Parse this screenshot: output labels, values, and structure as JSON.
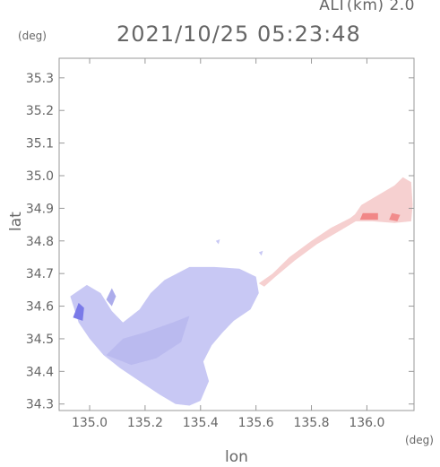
{
  "header": {
    "altitude": "ALT(km) 2.0",
    "timestamp": "2021/10/25 05:23:48",
    "y_unit": "(deg)",
    "x_unit": "(deg)"
  },
  "chart_data": {
    "type": "heatmap",
    "xlabel": "lon",
    "ylabel": "lat",
    "xlim": [
      134.89,
      136.17
    ],
    "ylim": [
      34.28,
      35.36
    ],
    "x_ticks": [
      135.0,
      135.2,
      135.4,
      135.6,
      135.8,
      136.0
    ],
    "x_tick_labels": [
      "135.0",
      "135.2",
      "135.4",
      "135.6",
      "135.8",
      "136.0"
    ],
    "y_ticks": [
      34.3,
      34.4,
      34.5,
      34.6,
      34.7,
      34.8,
      34.9,
      35.0,
      35.1,
      35.2,
      35.3
    ],
    "y_tick_labels": [
      "34.3",
      "34.4",
      "34.5",
      "34.6",
      "34.7",
      "34.8",
      "34.9",
      "35.0",
      "35.1",
      "35.2",
      "35.3"
    ],
    "colors": {
      "negative": "#c8c8f4",
      "negative_strong": "#7a7ae8",
      "positive": "#f6d0d0",
      "positive_strong": "#f07a7a"
    }
  }
}
